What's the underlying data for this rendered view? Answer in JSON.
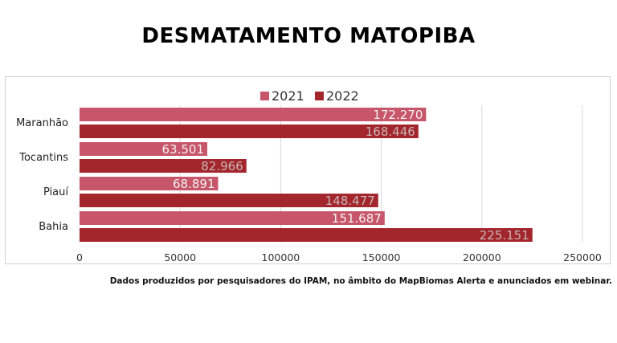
{
  "colors": {
    "series_2021": "#c8566a",
    "series_2022": "#a3262d",
    "grid": "#d9d9d9"
  },
  "chart_data": {
    "type": "bar",
    "orientation": "horizontal",
    "title": "DESMATAMENTO MATOPIBA",
    "categories": [
      "Maranhão",
      "Tocantins",
      "Piauí",
      "Bahia"
    ],
    "series": [
      {
        "name": "2021",
        "values": [
          172270,
          63501,
          68891,
          151687
        ],
        "labels": [
          "172.270",
          "63.501",
          "68.891",
          "151.687"
        ]
      },
      {
        "name": "2022",
        "values": [
          168446,
          82966,
          148477,
          225151
        ],
        "labels": [
          "168.446",
          "82.966",
          "148.477",
          "225.151"
        ]
      }
    ],
    "xlim": [
      0,
      250000
    ],
    "xticks": [
      0,
      50000,
      100000,
      150000,
      200000,
      250000
    ],
    "xtick_labels": [
      "0",
      "50000",
      "100000",
      "150000",
      "200000",
      "250000"
    ],
    "grid": true,
    "legend": "top-center"
  },
  "footnote": "Dados produzidos por pesquisadores do IPAM, no âmbito do MapBiomas Alerta e anunciados em webinar."
}
